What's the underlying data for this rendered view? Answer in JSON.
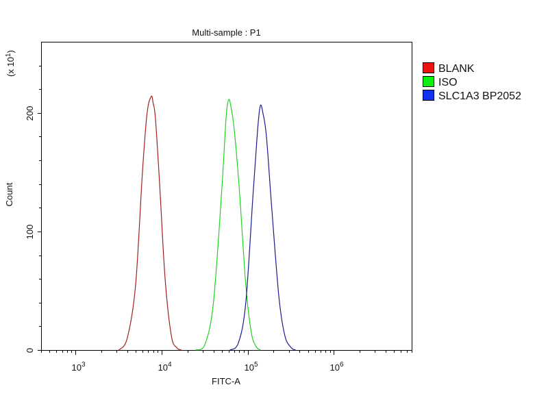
{
  "chart_data": {
    "type": "line",
    "title": "Multi-sample : P1",
    "xlabel": "FITC-A",
    "ylabel": "Count",
    "y_multiplier_label": "(x 10",
    "y_multiplier_exp": "1",
    "y_multiplier_close": ")",
    "x_scale": "log",
    "xlim": [
      400,
      8000000
    ],
    "ylim": [
      0,
      260
    ],
    "grid": false,
    "legend_position": "right",
    "x_ticks": [
      {
        "value": 1000,
        "base": "10",
        "exp": "3"
      },
      {
        "value": 10000,
        "base": "10",
        "exp": "4"
      },
      {
        "value": 100000,
        "base": "10",
        "exp": "5"
      },
      {
        "value": 1000000,
        "base": "10",
        "exp": "6"
      }
    ],
    "y_ticks": [
      {
        "value": 0,
        "label": "0"
      },
      {
        "value": 100,
        "label": "100"
      },
      {
        "value": 200,
        "label": "200"
      }
    ],
    "series": [
      {
        "name": "BLANK",
        "color": "#a02020",
        "legend_color": "#ee1111",
        "x": [
          3200,
          4000,
          5000,
          6000,
          6800,
          7600,
          8000,
          8500,
          9500,
          11000,
          13000,
          15000,
          17000
        ],
        "y": [
          0,
          10,
          55,
          150,
          200,
          214,
          208,
          195,
          140,
          60,
          12,
          2,
          0
        ]
      },
      {
        "name": "ISO",
        "color": "#20d020",
        "legend_color": "#11ee11",
        "x": [
          25000,
          32000,
          40000,
          50000,
          56000,
          60000,
          64000,
          70000,
          80000,
          95000,
          110000,
          125000,
          140000
        ],
        "y": [
          0,
          5,
          40,
          135,
          195,
          211,
          205,
          185,
          135,
          55,
          15,
          3,
          0
        ]
      },
      {
        "name": "SLC1A3 BP2052",
        "color": "#1a1a8c",
        "legend_color": "#1133ee",
        "x": [
          62000,
          78000,
          95000,
          115000,
          130000,
          140000,
          150000,
          165000,
          190000,
          230000,
          270000,
          320000,
          360000
        ],
        "y": [
          0,
          6,
          40,
          130,
          185,
          206,
          200,
          180,
          120,
          45,
          12,
          2,
          0
        ]
      }
    ]
  }
}
